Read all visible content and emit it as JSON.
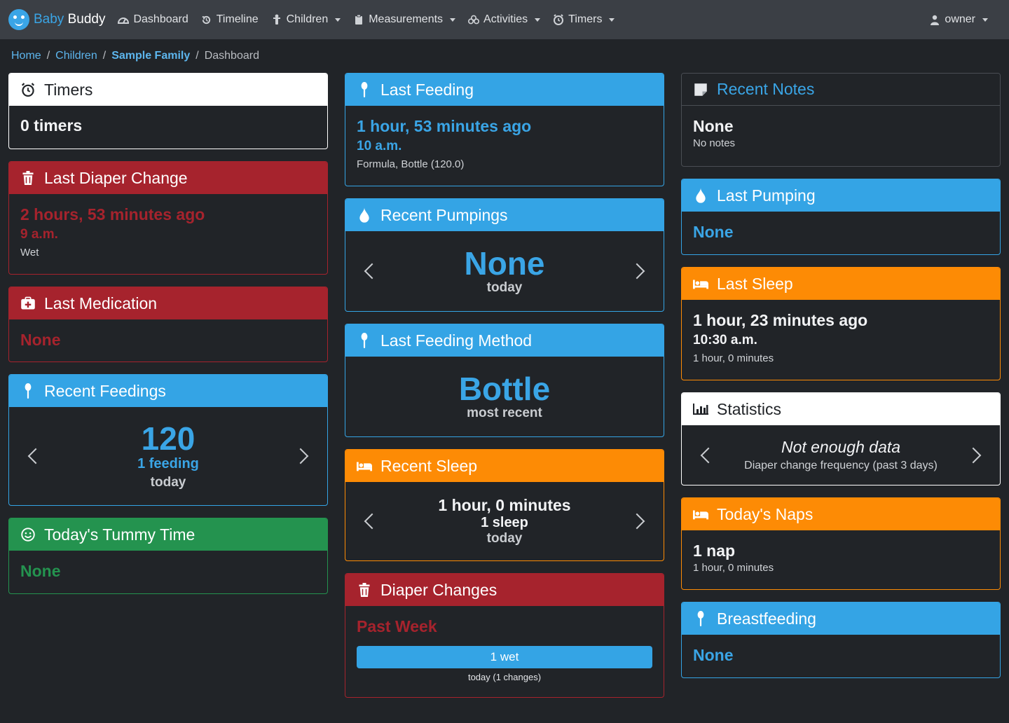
{
  "nav": {
    "brand_baby": "Baby",
    "brand_buddy": "Buddy",
    "items": [
      {
        "label": "Dashboard",
        "icon": "dashboard-icon",
        "dropdown": false
      },
      {
        "label": "Timeline",
        "icon": "history-icon",
        "dropdown": false
      },
      {
        "label": "Children",
        "icon": "child-icon",
        "dropdown": true
      },
      {
        "label": "Measurements",
        "icon": "clipboard-icon",
        "dropdown": true
      },
      {
        "label": "Activities",
        "icon": "activities-icon",
        "dropdown": true
      },
      {
        "label": "Timers",
        "icon": "timer-icon",
        "dropdown": true
      }
    ],
    "user": "owner"
  },
  "breadcrumb": {
    "home": "Home",
    "children": "Children",
    "family": "Sample Family",
    "current": "Dashboard"
  },
  "cards": {
    "timers": {
      "title": "Timers",
      "value": "0 timers"
    },
    "diaper": {
      "title": "Last Diaper Change",
      "ago": "2 hours, 53 minutes ago",
      "time": "9 a.m.",
      "detail": "Wet"
    },
    "medication": {
      "title": "Last Medication",
      "value": "None"
    },
    "recent_feedings": {
      "title": "Recent Feedings",
      "big": "120",
      "mid": "1 feeding",
      "period": "today"
    },
    "tummy": {
      "title": "Today's Tummy Time",
      "value": "None"
    },
    "last_feeding": {
      "title": "Last Feeding",
      "ago": "1 hour, 53 minutes ago",
      "time": "10 a.m.",
      "detail": "Formula, Bottle (120.0)"
    },
    "recent_pumpings": {
      "title": "Recent Pumpings",
      "big": "None",
      "period": "today"
    },
    "feeding_method": {
      "title": "Last Feeding Method",
      "big": "Bottle",
      "caption": "most recent"
    },
    "recent_sleep": {
      "title": "Recent Sleep",
      "duration": "1 hour, 0 minutes",
      "count": "1 sleep",
      "period": "today"
    },
    "diaper_changes": {
      "title": "Diaper Changes",
      "range": "Past Week",
      "bar_label": "1 wet",
      "bar_caption": "today (1 changes)",
      "bar_fraction": 1.0
    },
    "notes": {
      "title": "Recent Notes",
      "value": "None",
      "detail": "No notes"
    },
    "pumping": {
      "title": "Last Pumping",
      "value": "None"
    },
    "last_sleep": {
      "title": "Last Sleep",
      "ago": "1 hour, 23 minutes ago",
      "time": "10:30 a.m.",
      "detail": "1 hour, 0 minutes"
    },
    "statistics": {
      "title": "Statistics",
      "headline": "Not enough data",
      "caption": "Diaper change frequency (past 3 days)"
    },
    "naps": {
      "title": "Today's Naps",
      "value": "1 nap",
      "detail": "1 hour, 0 minutes"
    },
    "breastfeeding": {
      "title": "Breastfeeding",
      "value": "None"
    }
  },
  "colors": {
    "blue": "#34a4e5",
    "red": "#a6232d",
    "green": "#24934f",
    "orange": "#fd8b05",
    "background": "#212428",
    "navbar": "#3b3f45"
  }
}
